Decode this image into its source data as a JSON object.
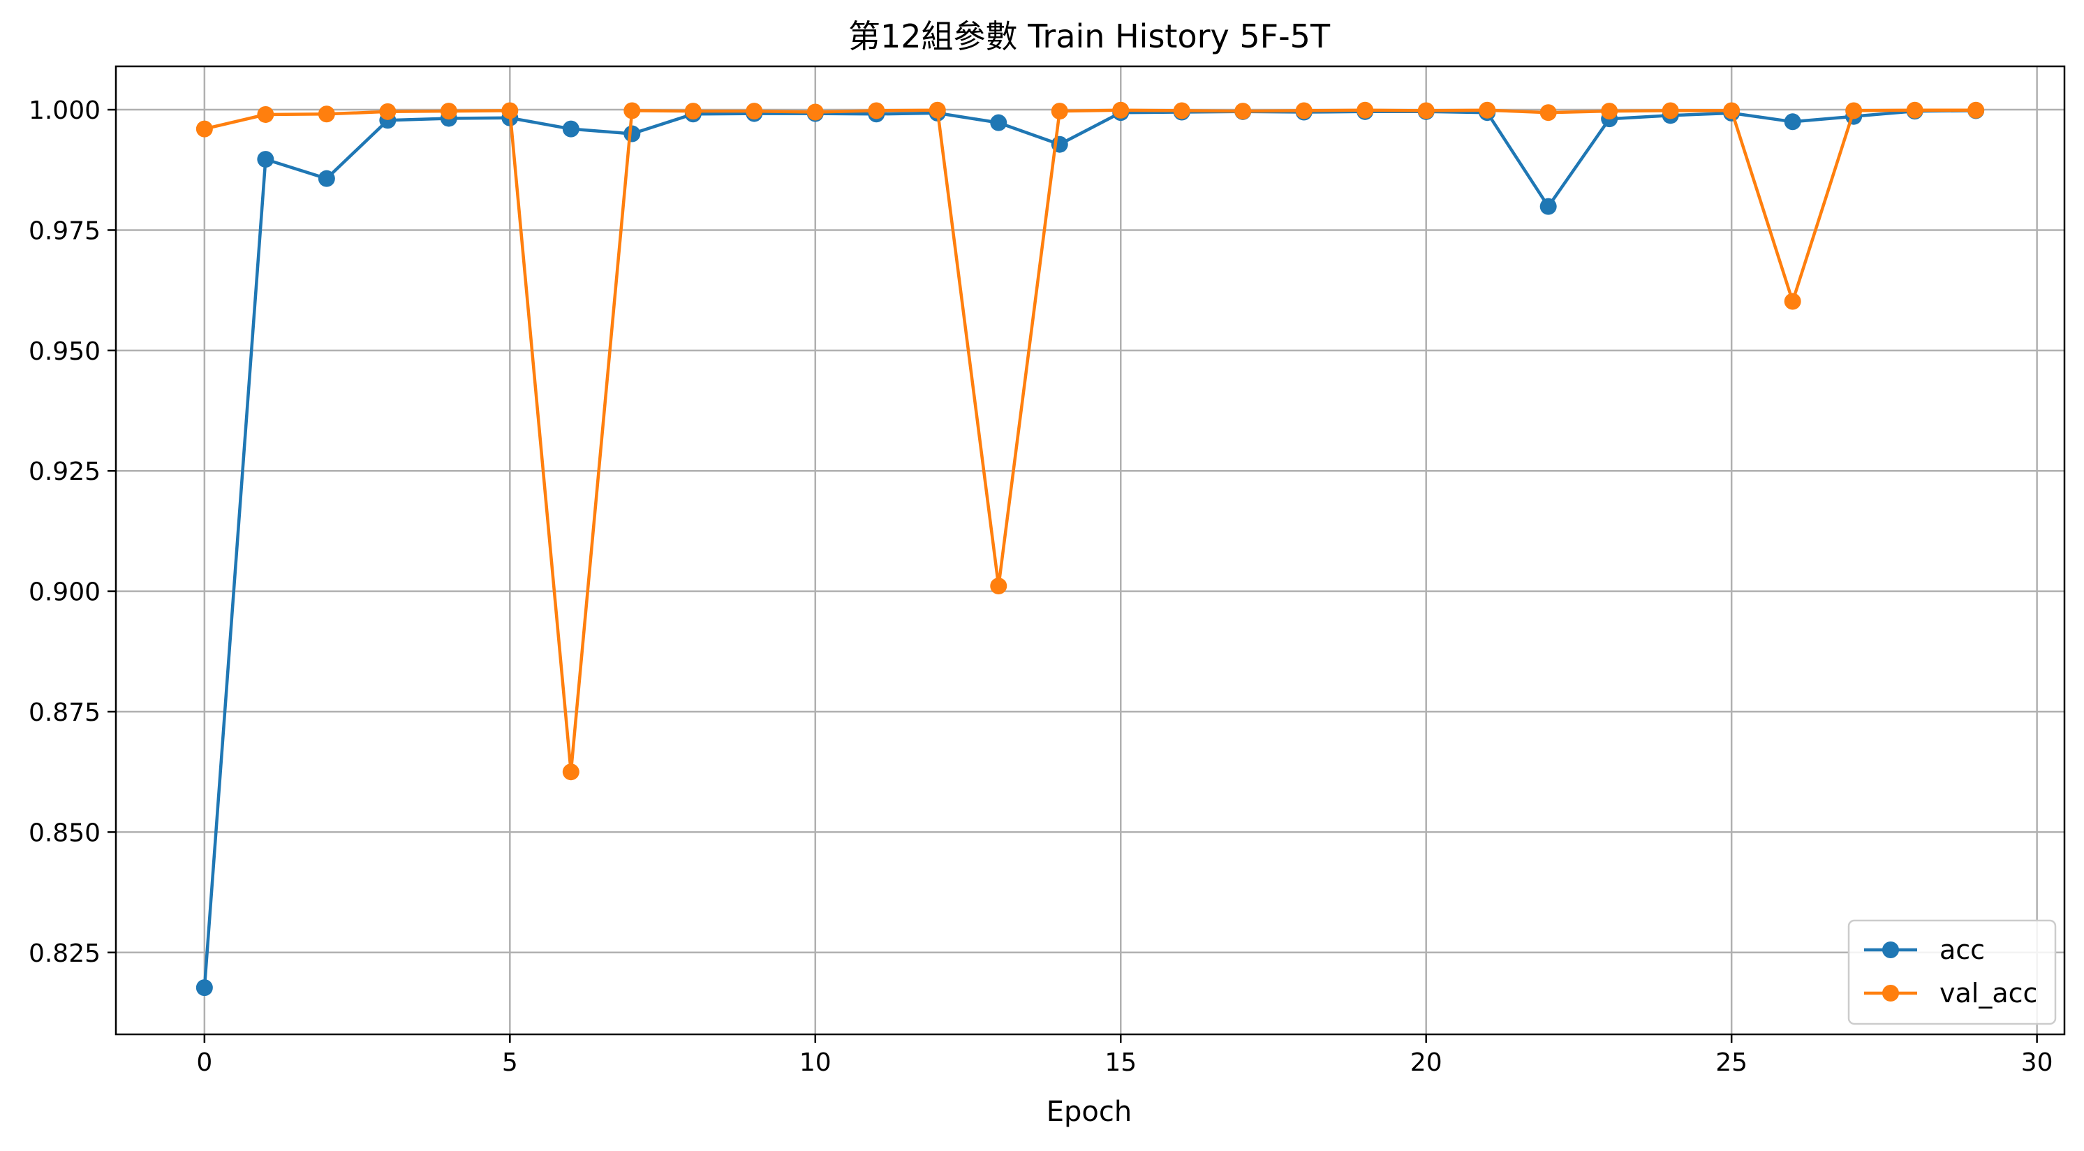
{
  "chart_data": {
    "type": "line",
    "title": "第12組參數 Train History 5F-5T",
    "xlabel": "Epoch",
    "ylabel": "",
    "xlim": [
      -1.45,
      30.45
    ],
    "ylim": [
      0.808,
      1.009
    ],
    "xticks": [
      0,
      5,
      10,
      15,
      20,
      25,
      30
    ],
    "yticks": [
      0.825,
      0.85,
      0.875,
      0.9,
      0.925,
      0.95,
      0.975,
      1.0
    ],
    "xtick_labels": [
      "0",
      "5",
      "10",
      "15",
      "20",
      "25",
      "30"
    ],
    "ytick_labels": [
      "0.825",
      "0.850",
      "0.875",
      "0.900",
      "0.925",
      "0.950",
      "0.975",
      "1.000"
    ],
    "grid": true,
    "legend_position": "bottom-right",
    "x": [
      0,
      1,
      2,
      3,
      4,
      5,
      6,
      7,
      8,
      9,
      10,
      11,
      12,
      13,
      14,
      15,
      16,
      17,
      18,
      19,
      20,
      21,
      22,
      23,
      24,
      25,
      26,
      27,
      28,
      29
    ],
    "series": [
      {
        "name": "acc",
        "color": "#1f77b4",
        "marker": "circle",
        "values": [
          0.8177,
          0.9897,
          0.9857,
          0.9978,
          0.9982,
          0.9983,
          0.996,
          0.995,
          0.9991,
          0.9992,
          0.9992,
          0.9991,
          0.9993,
          0.9973,
          0.9928,
          0.9994,
          0.9995,
          0.9996,
          0.9995,
          0.9996,
          0.9996,
          0.9994,
          0.9799,
          0.9981,
          0.9988,
          0.9993,
          0.9975,
          0.9986,
          0.9997,
          0.9998
        ]
      },
      {
        "name": "val_acc",
        "color": "#ff7f0e",
        "marker": "circle",
        "values": [
          0.996,
          0.999,
          0.9991,
          0.9996,
          0.9997,
          0.9998,
          0.8625,
          0.9998,
          0.9997,
          0.9997,
          0.9995,
          0.9998,
          0.9999,
          0.9011,
          0.9997,
          0.9999,
          0.9998,
          0.9997,
          0.9998,
          0.9999,
          0.9998,
          0.9999,
          0.9994,
          0.9997,
          0.9998,
          0.9998,
          0.9602,
          0.9998,
          0.9999,
          0.9999
        ]
      }
    ]
  }
}
